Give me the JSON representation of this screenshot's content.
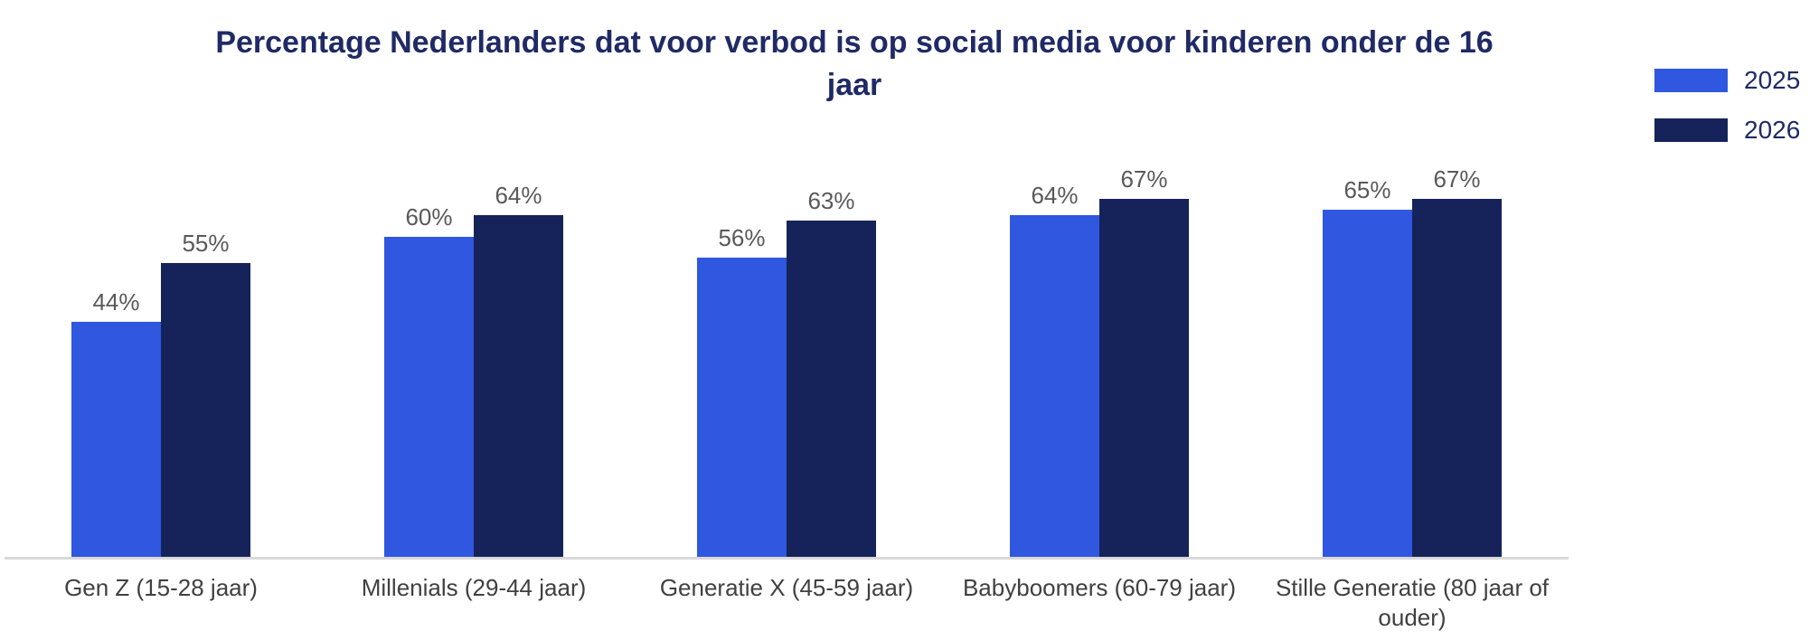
{
  "chart_data": {
    "type": "bar",
    "title": "Percentage Nederlanders dat voor verbod is op social media voor kinderen onder de 16 jaar",
    "categories": [
      "Gen Z (15-28 jaar)",
      "Millenials (29-44 jaar)",
      "Generatie X (45-59 jaar)",
      "Babyboomers (60-79 jaar)",
      "Stille Generatie (80 jaar of ouder)"
    ],
    "series": [
      {
        "name": "2025",
        "color": "#2F57E0",
        "values": [
          44,
          60,
          56,
          64,
          65
        ]
      },
      {
        "name": "2026",
        "color": "#16235A",
        "values": [
          55,
          64,
          63,
          67,
          67
        ]
      }
    ],
    "value_suffix": "%",
    "ylim": [
      0,
      100
    ],
    "grid": false,
    "data_labels": true,
    "legend_position": "top-right",
    "xlabel": "",
    "ylabel": "",
    "colors": {
      "title": "#1F2A66",
      "data_label": "#595959",
      "axis_label": "#404040",
      "axis_line": "#D9D9D9",
      "background": "#FFFFFF"
    }
  }
}
